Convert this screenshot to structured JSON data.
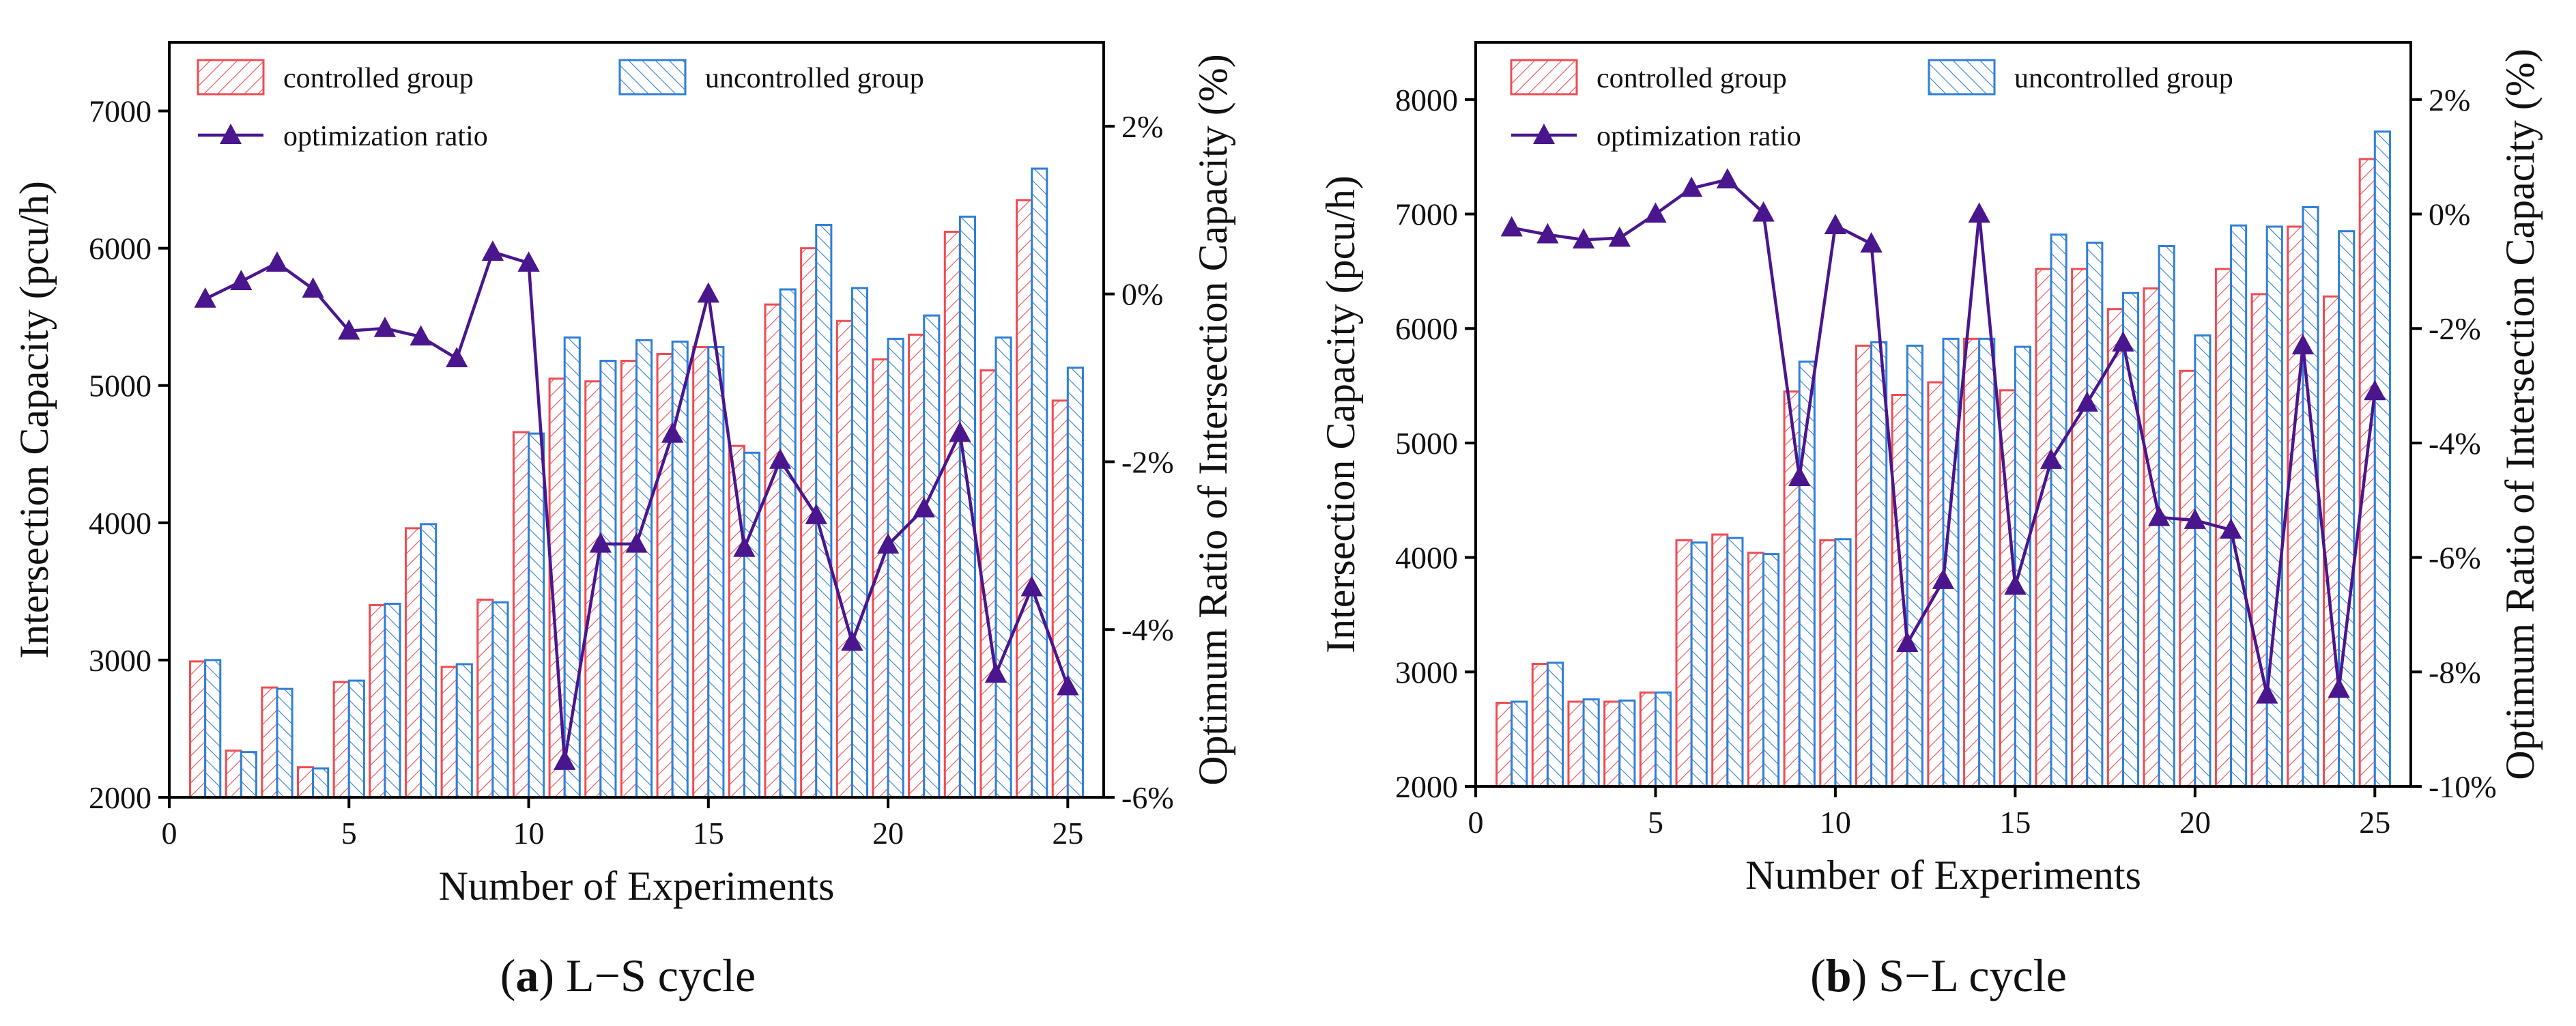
{
  "colors": {
    "controlled": "#ef4b52",
    "uncontrolled": "#2f7fd6",
    "ratio": "#4a168e",
    "axis": "#000000"
  },
  "legend": {
    "controlled": "controlled group",
    "uncontrolled": "uncontrolled group",
    "ratio": "optimization ratio"
  },
  "chart_data": [
    {
      "type": "bar",
      "caption_label": "a",
      "caption_text": "L−S cycle",
      "xlabel": "Number of Experiments",
      "ylabel": "Intersection Capacity (pcu/h)",
      "y2label": "Optimum Ratio of Intersection Capacity (%)",
      "xlim": [
        0,
        26
      ],
      "xticks": [
        0,
        5,
        10,
        15,
        20,
        25
      ],
      "ylim": [
        2000,
        7500
      ],
      "yticks": [
        2000,
        3000,
        4000,
        5000,
        6000,
        7000
      ],
      "y2lim": [
        -6,
        3
      ],
      "y2ticks": [
        -6,
        -4,
        -2,
        0,
        2
      ],
      "x": [
        1,
        2,
        3,
        4,
        5,
        6,
        7,
        8,
        9,
        10,
        11,
        12,
        13,
        14,
        15,
        16,
        17,
        18,
        19,
        20,
        21,
        22,
        23,
        24,
        25
      ],
      "series": [
        {
          "name": "controlled group",
          "kind": "bar",
          "values": [
            2990,
            2340,
            2800,
            2220,
            2840,
            3400,
            3960,
            2950,
            3440,
            4660,
            5050,
            5030,
            5180,
            5230,
            5280,
            4560,
            5590,
            6000,
            5470,
            5190,
            5370,
            6120,
            5110,
            6350,
            4890
          ]
        },
        {
          "name": "uncontrolled group",
          "kind": "bar",
          "values": [
            3000,
            2330,
            2790,
            2210,
            2850,
            3410,
            3990,
            2970,
            3420,
            4650,
            5350,
            5180,
            5330,
            5320,
            5280,
            4510,
            5700,
            6170,
            5710,
            5340,
            5510,
            6230,
            5350,
            6580,
            5130
          ]
        },
        {
          "name": "optimization ratio",
          "kind": "line",
          "axis": "right",
          "values": [
            -0.06,
            0.15,
            0.37,
            0.06,
            -0.44,
            -0.41,
            -0.51,
            -0.77,
            0.5,
            0.37,
            -5.57,
            -2.98,
            -2.98,
            -1.67,
            0.0,
            -3.03,
            -1.98,
            -2.64,
            -4.15,
            -2.99,
            -2.56,
            -1.66,
            -4.53,
            -3.5,
            -4.68
          ]
        }
      ]
    },
    {
      "type": "bar",
      "caption_label": "b",
      "caption_text": "S−L cycle",
      "xlabel": "Number of Experiments",
      "ylabel": "Intersection Capacity (pcu/h)",
      "y2label": "Optimum Ratio of Intersection Capacity (%)",
      "xlim": [
        0,
        26
      ],
      "xticks": [
        0,
        5,
        10,
        15,
        20,
        25
      ],
      "ylim": [
        2000,
        8500
      ],
      "yticks": [
        2000,
        3000,
        4000,
        5000,
        6000,
        7000,
        8000
      ],
      "y2lim": [
        -10,
        3
      ],
      "y2ticks": [
        -10,
        -8,
        -6,
        -4,
        -2,
        0,
        2
      ],
      "x": [
        1,
        2,
        3,
        4,
        5,
        6,
        7,
        8,
        9,
        10,
        11,
        12,
        13,
        14,
        15,
        16,
        17,
        18,
        19,
        20,
        21,
        22,
        23,
        24,
        25
      ],
      "series": [
        {
          "name": "controlled group",
          "kind": "bar",
          "values": [
            2730,
            3070,
            2740,
            2740,
            2820,
            4150,
            4200,
            4040,
            5450,
            4150,
            5850,
            5420,
            5530,
            5910,
            5460,
            6520,
            6520,
            6170,
            6350,
            5630,
            6520,
            6300,
            6890,
            6280,
            7480
          ]
        },
        {
          "name": "uncontrolled group",
          "kind": "bar",
          "values": [
            2740,
            3080,
            2760,
            2750,
            2820,
            4130,
            4170,
            4030,
            5710,
            4160,
            5880,
            5850,
            5910,
            5910,
            5840,
            6820,
            6750,
            6310,
            6720,
            5940,
            6900,
            6890,
            7060,
            6850,
            7720
          ]
        },
        {
          "name": "optimization ratio",
          "kind": "line",
          "axis": "right",
          "values": [
            -0.24,
            -0.36,
            -0.45,
            -0.42,
            0.0,
            0.45,
            0.6,
            0.02,
            -4.6,
            -0.2,
            -0.52,
            -7.5,
            -6.4,
            0.0,
            -6.5,
            -4.3,
            -3.3,
            -2.25,
            -5.3,
            -5.35,
            -5.52,
            -8.4,
            -2.3,
            -8.3,
            -3.1
          ]
        }
      ]
    }
  ]
}
